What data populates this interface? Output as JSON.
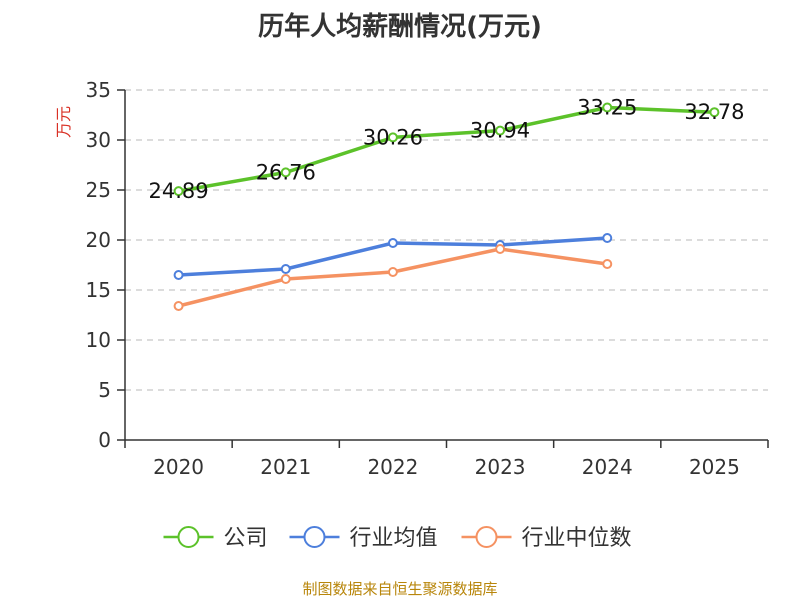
{
  "chart_data": {
    "type": "line",
    "title": "历年人均薪酬情况(万元)",
    "ylabel": "万元",
    "xlabel": "",
    "categories": [
      "2020",
      "2021",
      "2022",
      "2023",
      "2024",
      "2025"
    ],
    "ylim": [
      0,
      35
    ],
    "yticks": [
      0,
      5,
      10,
      15,
      20,
      25,
      30,
      35
    ],
    "grid": true,
    "legend_position": "bottom",
    "series": [
      {
        "name": "公司",
        "color": "#5cc22a",
        "values": [
          24.89,
          26.76,
          30.26,
          30.94,
          33.25,
          32.78
        ],
        "show_labels": true
      },
      {
        "name": "行业均值",
        "color": "#4d7fdc",
        "values": [
          16.5,
          17.1,
          19.7,
          19.5,
          20.2,
          null
        ],
        "show_labels": false
      },
      {
        "name": "行业中位数",
        "color": "#f59262",
        "values": [
          13.4,
          16.1,
          16.8,
          19.1,
          17.6,
          null
        ],
        "show_labels": false
      }
    ]
  },
  "footer": "制图数据来自恒生聚源数据库"
}
